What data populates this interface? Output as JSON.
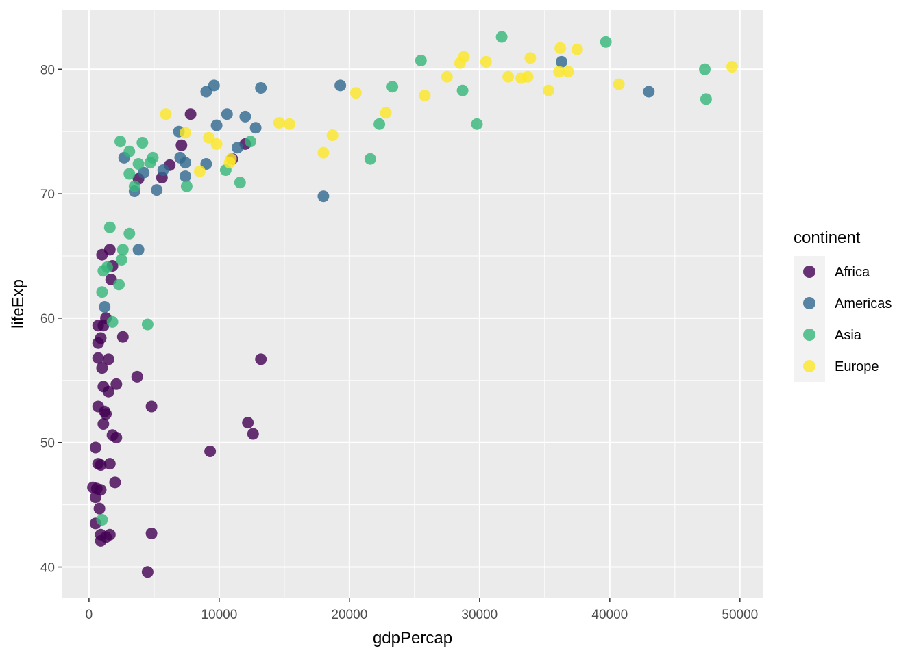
{
  "chart_data": {
    "type": "scatter",
    "xlabel": "gdpPercap",
    "ylabel": "lifeExp",
    "xlim": [
      -2100,
      51800
    ],
    "ylim": [
      37.5,
      84.8
    ],
    "x_ticks": [
      0,
      10000,
      20000,
      30000,
      40000,
      50000
    ],
    "x_tick_labels": [
      "0",
      "10000",
      "20000",
      "30000",
      "40000",
      "50000"
    ],
    "y_ticks": [
      40,
      50,
      60,
      70,
      80
    ],
    "y_tick_labels": [
      "40",
      "50",
      "60",
      "70",
      "80"
    ],
    "grid": true,
    "legend": {
      "title": "continent",
      "placement": "right",
      "entries": [
        {
          "label": "Africa",
          "color": "#440154"
        },
        {
          "label": "Americas",
          "color": "#31688E"
        },
        {
          "label": "Asia",
          "color": "#35B779"
        },
        {
          "label": "Europe",
          "color": "#FDE725"
        }
      ]
    },
    "series": [
      {
        "name": "Africa",
        "color": "#440154",
        "points": [
          [
            7800,
            76.4
          ],
          [
            7100,
            73.9
          ],
          [
            6200,
            72.3
          ],
          [
            5600,
            71.3
          ],
          [
            3800,
            71.2
          ],
          [
            12000,
            74.0
          ],
          [
            11000,
            72.8
          ],
          [
            1000,
            65.1
          ],
          [
            1600,
            65.5
          ],
          [
            1800,
            64.2
          ],
          [
            1700,
            63.1
          ],
          [
            1300,
            60.0
          ],
          [
            700,
            59.4
          ],
          [
            1100,
            59.4
          ],
          [
            2600,
            58.5
          ],
          [
            900,
            58.4
          ],
          [
            700,
            58.0
          ],
          [
            700,
            56.8
          ],
          [
            1500,
            56.7
          ],
          [
            1000,
            56.0
          ],
          [
            3700,
            55.3
          ],
          [
            2100,
            54.7
          ],
          [
            1100,
            54.5
          ],
          [
            1500,
            54.1
          ],
          [
            13200,
            56.7
          ],
          [
            700,
            52.9
          ],
          [
            4800,
            52.9
          ],
          [
            1200,
            52.5
          ],
          [
            1300,
            52.3
          ],
          [
            1100,
            51.5
          ],
          [
            12200,
            51.6
          ],
          [
            12600,
            50.7
          ],
          [
            1800,
            50.6
          ],
          [
            2100,
            50.4
          ],
          [
            500,
            49.6
          ],
          [
            9300,
            49.3
          ],
          [
            700,
            48.3
          ],
          [
            900,
            48.2
          ],
          [
            1600,
            48.3
          ],
          [
            2000,
            46.8
          ],
          [
            300,
            46.4
          ],
          [
            600,
            46.3
          ],
          [
            900,
            46.2
          ],
          [
            500,
            45.6
          ],
          [
            800,
            44.7
          ],
          [
            500,
            43.5
          ],
          [
            900,
            42.6
          ],
          [
            1300,
            42.4
          ],
          [
            1600,
            42.6
          ],
          [
            900,
            42.1
          ],
          [
            4800,
            42.7
          ],
          [
            4500,
            39.6
          ]
        ]
      },
      {
        "name": "Americas",
        "color": "#31688E",
        "points": [
          [
            9000,
            78.2
          ],
          [
            9600,
            78.7
          ],
          [
            13200,
            78.5
          ],
          [
            10600,
            76.4
          ],
          [
            12000,
            76.2
          ],
          [
            9800,
            75.5
          ],
          [
            12800,
            75.3
          ],
          [
            6900,
            75.0
          ],
          [
            11400,
            73.7
          ],
          [
            7000,
            72.9
          ],
          [
            7400,
            72.5
          ],
          [
            9000,
            72.4
          ],
          [
            2700,
            72.9
          ],
          [
            5700,
            71.9
          ],
          [
            4200,
            71.7
          ],
          [
            7400,
            71.4
          ],
          [
            3500,
            70.2
          ],
          [
            5200,
            70.3
          ],
          [
            18000,
            69.8
          ],
          [
            3800,
            65.5
          ],
          [
            1200,
            60.9
          ],
          [
            19300,
            78.7
          ],
          [
            36300,
            80.6
          ],
          [
            43000,
            78.2
          ]
        ]
      },
      {
        "name": "Asia",
        "color": "#35B779",
        "points": [
          [
            2400,
            74.2
          ],
          [
            4100,
            74.1
          ],
          [
            3100,
            73.4
          ],
          [
            4900,
            72.9
          ],
          [
            4700,
            72.5
          ],
          [
            3800,
            72.4
          ],
          [
            3100,
            71.6
          ],
          [
            12400,
            74.2
          ],
          [
            10500,
            71.9
          ],
          [
            11600,
            70.9
          ],
          [
            3500,
            70.6
          ],
          [
            7500,
            70.6
          ],
          [
            1600,
            67.3
          ],
          [
            3100,
            66.8
          ],
          [
            2600,
            65.5
          ],
          [
            2500,
            64.7
          ],
          [
            1400,
            64.1
          ],
          [
            1100,
            63.8
          ],
          [
            2300,
            62.7
          ],
          [
            1000,
            62.1
          ],
          [
            1800,
            59.7
          ],
          [
            4500,
            59.5
          ],
          [
            1000,
            43.8
          ],
          [
            25500,
            80.7
          ],
          [
            31700,
            82.6
          ],
          [
            39700,
            82.2
          ],
          [
            47300,
            80.0
          ],
          [
            47400,
            77.6
          ],
          [
            23300,
            78.6
          ],
          [
            28700,
            78.3
          ],
          [
            22300,
            75.6
          ],
          [
            21600,
            72.8
          ],
          [
            29800,
            75.6
          ]
        ]
      },
      {
        "name": "Europe",
        "color": "#FDE725",
        "points": [
          [
            5900,
            76.4
          ],
          [
            7400,
            74.9
          ],
          [
            9200,
            74.5
          ],
          [
            9800,
            74.0
          ],
          [
            8500,
            71.8
          ],
          [
            10900,
            72.8
          ],
          [
            10800,
            72.5
          ],
          [
            14600,
            75.7
          ],
          [
            15400,
            75.6
          ],
          [
            18700,
            74.7
          ],
          [
            18000,
            73.3
          ],
          [
            20500,
            78.1
          ],
          [
            22800,
            76.5
          ],
          [
            25800,
            77.9
          ],
          [
            27500,
            79.4
          ],
          [
            28500,
            80.5
          ],
          [
            28800,
            81.0
          ],
          [
            30500,
            80.6
          ],
          [
            32200,
            79.4
          ],
          [
            33200,
            79.3
          ],
          [
            33700,
            79.4
          ],
          [
            33900,
            80.9
          ],
          [
            35300,
            78.3
          ],
          [
            36100,
            79.8
          ],
          [
            36200,
            81.7
          ],
          [
            36800,
            79.8
          ],
          [
            37500,
            81.6
          ],
          [
            40700,
            78.8
          ],
          [
            49400,
            80.2
          ]
        ]
      }
    ]
  }
}
